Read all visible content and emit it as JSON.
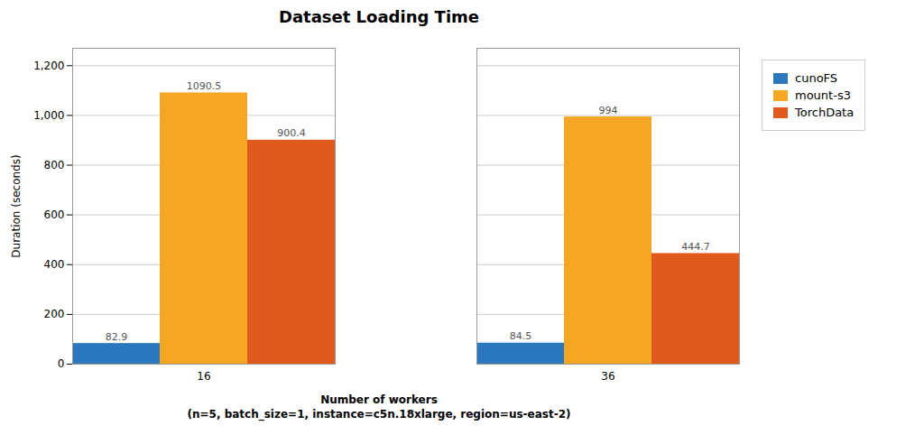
{
  "chart_data": {
    "type": "bar",
    "title": "Dataset Loading Time",
    "xlabel": "Number of workers\n(n=5, batch_size=1, instance=c5n.18xlarge, region=us-east-2)",
    "ylabel": "Duration (seconds)",
    "categories": [
      "16",
      "36"
    ],
    "series": [
      {
        "name": "cunoFS",
        "color": "#2B78BE",
        "values": [
          82.9,
          84.5
        ]
      },
      {
        "name": "mount-s3",
        "color": "#F5A623",
        "values": [
          1090.5,
          994
        ]
      },
      {
        "name": "TorchData",
        "color": "#E05A1E",
        "values": [
          900.4,
          444.7
        ]
      }
    ],
    "ylim": [
      0,
      1270
    ],
    "yticks": [
      0,
      200,
      400,
      600,
      800,
      {
        "value": 1000,
        "label": "1,000"
      },
      {
        "value": 1200,
        "label": "1,200"
      }
    ],
    "grid": true,
    "legend": "upper right",
    "data_labels": true
  }
}
